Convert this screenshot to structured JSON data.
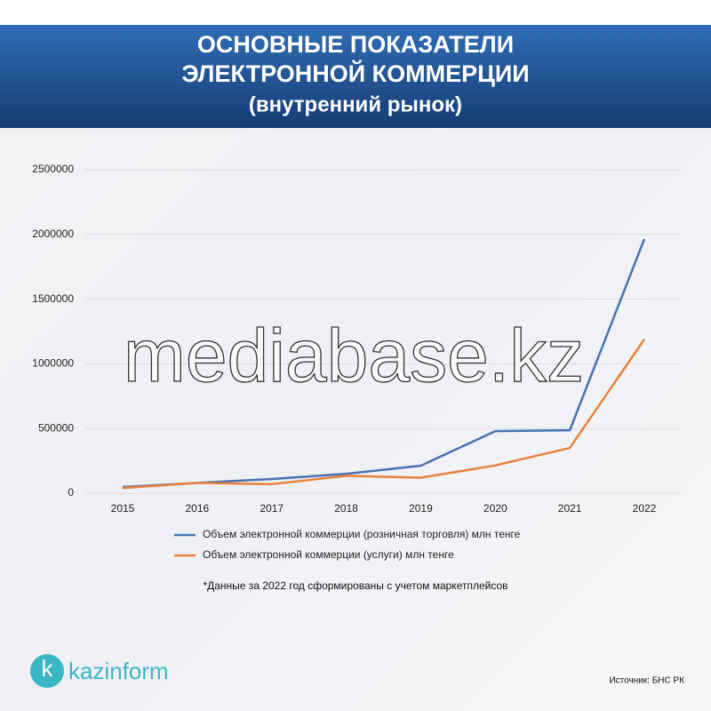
{
  "chart_data": {
    "type": "line",
    "title": [
      "ОСНОВНЫЕ ПОКАЗАТЕЛИ",
      "ЭЛЕКТРОННОЙ КОММЕРЦИИ"
    ],
    "subtitle": "(внутренний рынок)",
    "categories": [
      "2015",
      "2016",
      "2017",
      "2018",
      "2019",
      "2020",
      "2021",
      "2022"
    ],
    "series": [
      {
        "name": "Объем электронной коммерции (розничная торговля) млн тенге",
        "color": "#4a72b0",
        "values": [
          48000,
          80000,
          110000,
          150000,
          213000,
          480000,
          487000,
          1965000
        ]
      },
      {
        "name": "Объем электронной коммерции (услуги) млн тенге",
        "color": "#e8823a",
        "values": [
          40000,
          80000,
          70000,
          135000,
          120000,
          215000,
          350000,
          1190000
        ]
      }
    ],
    "ylim": [
      0,
      2500000
    ],
    "yticks": [
      0,
      500000,
      1000000,
      1500000,
      2000000,
      2500000
    ],
    "grid": true,
    "legend": "bottom"
  },
  "watermark": "mediabase.kz",
  "footnote": "*Данные за 2022 год сформированы с учетом маркетплейсов",
  "logo": {
    "letter": "k",
    "name": "kazinform"
  },
  "source": "Источник: БНС РК"
}
